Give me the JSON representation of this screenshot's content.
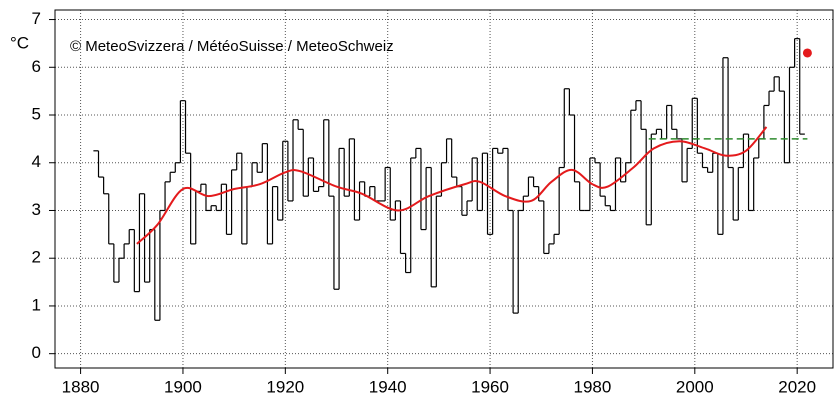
{
  "chart_data": {
    "type": "line",
    "annotation": "© MeteoSvizzera / MétéoSuisse / MeteoSchweiz",
    "ylabel": "°C",
    "xlim": [
      1875,
      2027
    ],
    "ylim": [
      -0.3,
      7.2
    ],
    "xticks": [
      1880,
      1900,
      1920,
      1940,
      1960,
      1980,
      2000,
      2020
    ],
    "yticks": [
      0,
      1,
      2,
      3,
      4,
      5,
      6,
      7
    ],
    "grid": true,
    "series": [
      {
        "color": "#000000",
        "step": true,
        "x": [
          1883,
          1884,
          1885,
          1886,
          1887,
          1888,
          1889,
          1890,
          1891,
          1892,
          1893,
          1894,
          1895,
          1896,
          1897,
          1898,
          1899,
          1900,
          1901,
          1902,
          1903,
          1904,
          1905,
          1906,
          1907,
          1908,
          1909,
          1910,
          1911,
          1912,
          1913,
          1914,
          1915,
          1916,
          1917,
          1918,
          1919,
          1920,
          1921,
          1922,
          1923,
          1924,
          1925,
          1926,
          1927,
          1928,
          1929,
          1930,
          1931,
          1932,
          1933,
          1934,
          1935,
          1936,
          1937,
          1938,
          1939,
          1940,
          1941,
          1942,
          1943,
          1944,
          1945,
          1946,
          1947,
          1948,
          1949,
          1950,
          1951,
          1952,
          1953,
          1954,
          1955,
          1956,
          1957,
          1958,
          1959,
          1960,
          1961,
          1962,
          1963,
          1964,
          1965,
          1966,
          1967,
          1968,
          1969,
          1970,
          1971,
          1972,
          1973,
          1974,
          1975,
          1976,
          1977,
          1978,
          1979,
          1980,
          1981,
          1982,
          1983,
          1984,
          1985,
          1986,
          1987,
          1988,
          1989,
          1990,
          1991,
          1992,
          1993,
          1994,
          1995,
          1996,
          1997,
          1998,
          1999,
          2000,
          2001,
          2002,
          2003,
          2004,
          2005,
          2006,
          2007,
          2008,
          2009,
          2010,
          2011,
          2012,
          2013,
          2014,
          2015,
          2016,
          2017,
          2018,
          2019,
          2020,
          2021
        ],
        "values": [
          4.25,
          3.7,
          3.35,
          2.3,
          1.5,
          2.0,
          2.3,
          2.6,
          1.3,
          3.35,
          1.5,
          2.6,
          0.7,
          3.0,
          3.6,
          3.8,
          4.0,
          5.3,
          4.2,
          2.3,
          3.4,
          3.55,
          3.0,
          3.1,
          3.0,
          3.55,
          2.5,
          3.85,
          4.2,
          2.3,
          3.5,
          4.0,
          3.8,
          4.4,
          2.3,
          3.5,
          2.8,
          4.45,
          3.2,
          4.9,
          4.7,
          3.3,
          4.1,
          3.4,
          3.5,
          4.9,
          3.3,
          1.35,
          4.3,
          3.3,
          4.5,
          2.8,
          3.6,
          3.3,
          3.5,
          3.2,
          3.2,
          3.9,
          2.8,
          3.2,
          2.1,
          1.7,
          4.1,
          4.3,
          2.6,
          3.9,
          1.4,
          3.3,
          4.0,
          4.5,
          3.7,
          3.5,
          2.9,
          3.2,
          4.1,
          3.0,
          4.2,
          2.5,
          4.3,
          4.2,
          4.3,
          3.0,
          0.85,
          3.0,
          3.3,
          3.7,
          3.5,
          3.2,
          2.1,
          2.3,
          2.5,
          3.9,
          5.55,
          5.0,
          3.6,
          3.0,
          3.0,
          4.1,
          4.0,
          3.3,
          3.1,
          3.0,
          4.1,
          3.6,
          4.0,
          5.1,
          5.3,
          4.7,
          2.7,
          4.6,
          4.7,
          4.5,
          5.2,
          4.7,
          4.5,
          3.6,
          4.3,
          5.35,
          4.2,
          3.9,
          3.8,
          4.2,
          2.5,
          6.2,
          3.9,
          2.8,
          3.9,
          4.6,
          3.0,
          4.1,
          4.5,
          5.2,
          5.5,
          5.8,
          5.5,
          4.0,
          6.0,
          6.6,
          4.6
        ]
      },
      {
        "color": "#e41a1c",
        "smooth": true,
        "x": [
          1891,
          1895,
          1900,
          1905,
          1910,
          1915,
          1920,
          1923,
          1930,
          1935,
          1942,
          1948,
          1955,
          1958,
          1963,
          1968,
          1972,
          1976,
          1980,
          1983,
          1988,
          1992,
          1997,
          2002,
          2006,
          2010,
          2014
        ],
        "values": [
          2.3,
          2.7,
          3.45,
          3.3,
          3.45,
          3.55,
          3.8,
          3.82,
          3.5,
          3.35,
          3.0,
          3.3,
          3.55,
          3.6,
          3.3,
          3.2,
          3.6,
          3.85,
          3.55,
          3.5,
          3.9,
          4.3,
          4.45,
          4.3,
          4.15,
          4.25,
          4.75
        ]
      },
      {
        "color": "#2e8b2e",
        "dash": true,
        "x": [
          1991,
          2022
        ],
        "values": [
          4.5,
          4.5
        ]
      },
      {
        "color": "#e41a1c",
        "marker": true,
        "x": [
          2022
        ],
        "values": [
          6.3
        ]
      }
    ]
  }
}
